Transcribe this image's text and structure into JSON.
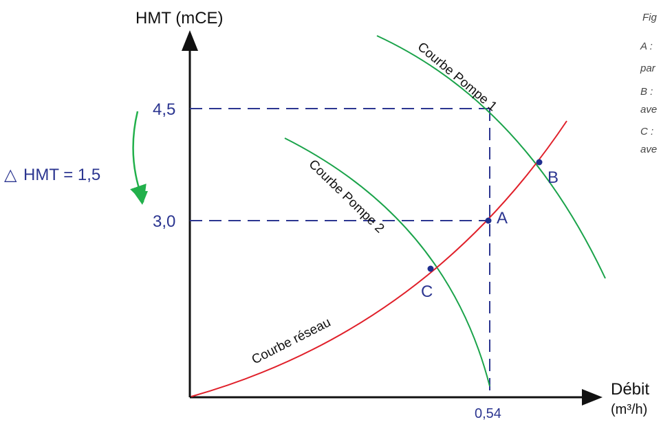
{
  "axes": {
    "y_title": "HMT (mCE)",
    "x_title_line1": "Débit",
    "x_title_line2": "(m³/h)"
  },
  "ticks": {
    "y_high": "4,5",
    "y_low": "3,0",
    "x_mark": "0,54"
  },
  "delta": {
    "symbol": "△",
    "text": "HMT = 1,5"
  },
  "points": {
    "a": "A",
    "b": "B",
    "c": "C"
  },
  "curves": {
    "pump1": "Courbe Pompe 1",
    "pump2": "Courbe Pompe 2",
    "network": "Courbe réseau"
  },
  "side_notes": {
    "fig": "Fig",
    "a": "A :",
    "a_cont": "par",
    "b": "B :",
    "b_cont": "ave",
    "c": "C :",
    "c_cont": "ave"
  },
  "colors": {
    "axis": "#111111",
    "dashes": "#2b3590",
    "pump_curve": "#1aa34a",
    "network_curve": "#e0202a",
    "point": "#1f2f8f",
    "delta_arrow": "#22b04b"
  }
}
